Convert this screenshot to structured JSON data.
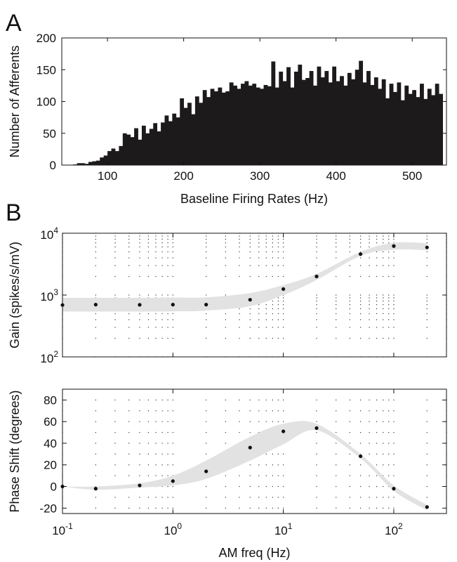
{
  "panels": {
    "a": "A",
    "b": "B"
  },
  "chart_data": [
    {
      "type": "bar",
      "panel": "A",
      "xlabel": "Baseline Firing Rates (Hz)",
      "ylabel": "Number of Afferents",
      "xlim": [
        40,
        545
      ],
      "ylim": [
        0,
        200
      ],
      "xticks": [
        100,
        200,
        300,
        400,
        500
      ],
      "yticks": [
        0,
        50,
        100,
        150,
        200
      ],
      "bin_width": 5,
      "x": [
        55,
        60,
        65,
        70,
        75,
        80,
        85,
        90,
        95,
        100,
        105,
        110,
        115,
        120,
        125,
        130,
        135,
        140,
        145,
        150,
        155,
        160,
        165,
        170,
        175,
        180,
        185,
        190,
        195,
        200,
        205,
        210,
        215,
        220,
        225,
        230,
        235,
        240,
        245,
        250,
        255,
        260,
        265,
        270,
        275,
        280,
        285,
        290,
        295,
        300,
        305,
        310,
        315,
        320,
        325,
        330,
        335,
        340,
        345,
        350,
        355,
        360,
        365,
        370,
        375,
        380,
        385,
        390,
        395,
        400,
        405,
        410,
        415,
        420,
        425,
        430,
        435,
        440,
        445,
        450,
        455,
        460,
        465,
        470,
        475,
        480,
        485,
        490,
        495,
        500,
        505,
        510,
        515,
        520,
        525,
        530,
        535
      ],
      "values": [
        1,
        3,
        3,
        2,
        5,
        6,
        7,
        12,
        15,
        22,
        26,
        22,
        30,
        50,
        48,
        44,
        58,
        40,
        62,
        50,
        57,
        66,
        53,
        67,
        78,
        69,
        81,
        75,
        105,
        90,
        98,
        80,
        108,
        98,
        118,
        107,
        120,
        116,
        122,
        114,
        116,
        130,
        125,
        120,
        128,
        132,
        125,
        128,
        122,
        120,
        126,
        124,
        163,
        122,
        147,
        132,
        154,
        122,
        147,
        158,
        134,
        137,
        148,
        125,
        155,
        138,
        148,
        130,
        155,
        132,
        140,
        125,
        145,
        135,
        150,
        164,
        130,
        148,
        126,
        138,
        120,
        135,
        105,
        128,
        115,
        130,
        102,
        125,
        112,
        118,
        107,
        128,
        104,
        120,
        110,
        128,
        112
      ]
    },
    {
      "type": "scatter",
      "panel": "B",
      "xlabel": "AM freq (Hz)",
      "ylabel": "Gain (spikes/s/mV)",
      "xscale": "log",
      "yscale": "log",
      "xlim": [
        0.1,
        300
      ],
      "ylim": [
        100,
        10000
      ],
      "x": [
        0.1,
        0.2,
        0.5,
        1,
        2,
        5,
        10,
        20,
        50,
        100,
        200
      ],
      "values": [
        690,
        700,
        695,
        700,
        700,
        840,
        1250,
        2000,
        4600,
        6200,
        5900
      ],
      "band_low": [
        540,
        540,
        540,
        545,
        560,
        660,
        1000,
        1750,
        4300,
        5400,
        5300
      ],
      "band_high": [
        900,
        900,
        900,
        910,
        920,
        1080,
        1450,
        2200,
        5000,
        7000,
        6900
      ],
      "grid": true
    },
    {
      "type": "scatter",
      "panel": "B",
      "xlabel": "AM freq (Hz)",
      "ylabel": "Phase Shift (degrees)",
      "xscale": "log",
      "xlim": [
        0.1,
        300
      ],
      "ylim": [
        -25,
        90
      ],
      "xticks": [
        0.1,
        1,
        10,
        100
      ],
      "yticks": [
        -20,
        0,
        20,
        40,
        60,
        80
      ],
      "x": [
        0.1,
        0.2,
        0.5,
        1,
        2,
        5,
        10,
        20,
        50,
        100,
        200
      ],
      "values": [
        0,
        -2,
        1,
        5,
        14,
        36,
        51,
        54,
        28,
        -2,
        -19
      ],
      "band_low": [
        0,
        -3,
        -1,
        1,
        7,
        24,
        39,
        52,
        26,
        -4,
        -22
      ],
      "band_high": [
        0,
        0,
        3,
        10,
        24,
        46,
        58,
        58,
        30,
        1,
        -17
      ],
      "grid": true
    }
  ]
}
